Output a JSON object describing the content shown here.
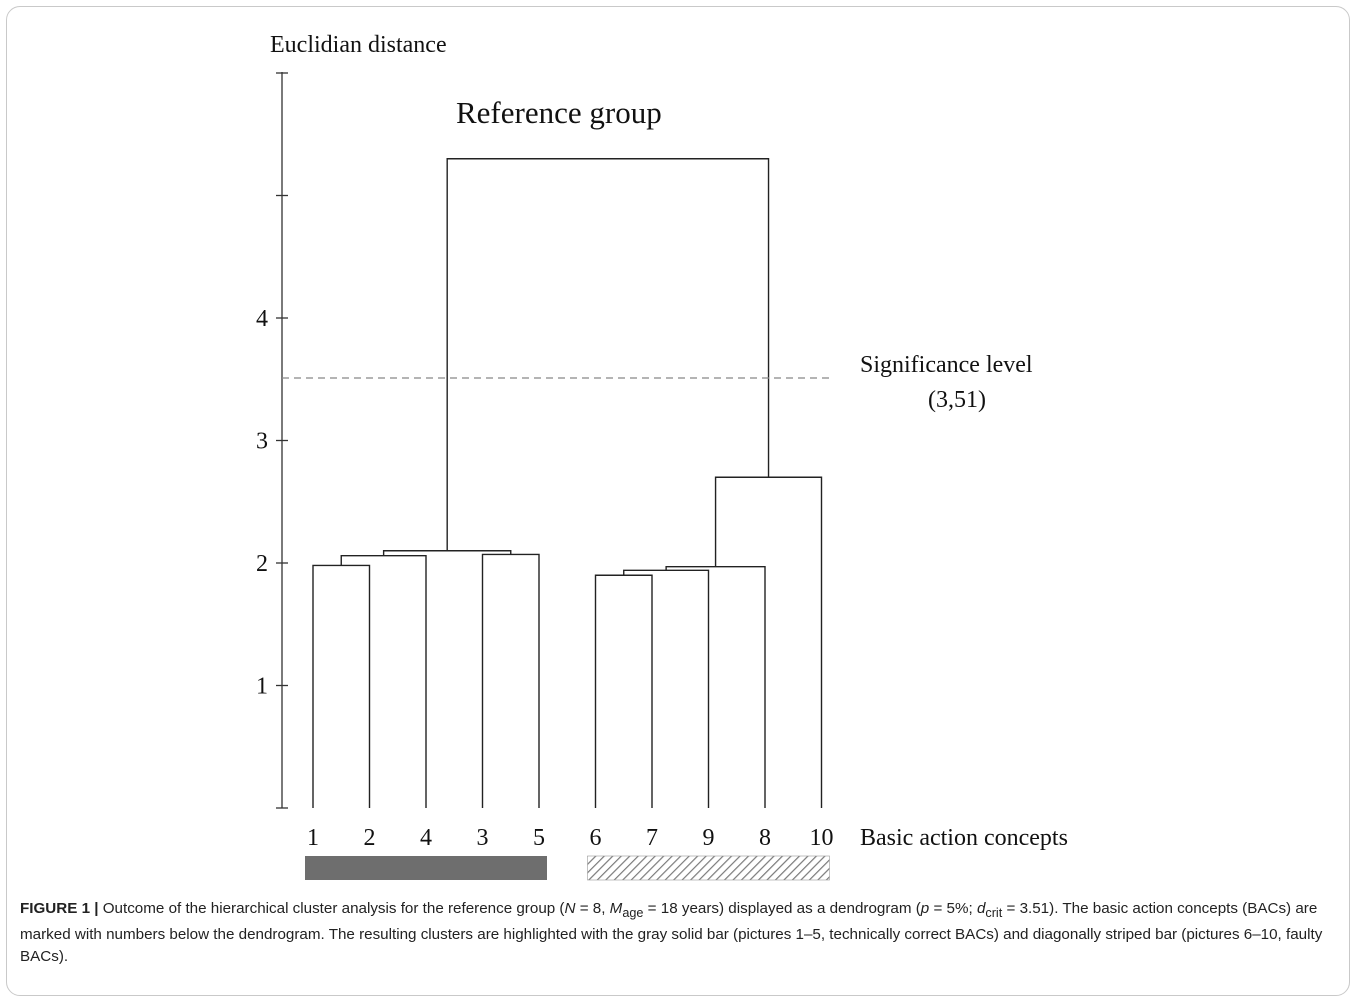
{
  "figure": {
    "y_axis_label": "Euclidian distance",
    "title": "Reference group",
    "significance_label": "Significance level",
    "significance_value_label": "(3,51)",
    "x_axis_label": "Basic action concepts"
  },
  "chart_data": {
    "type": "dendrogram",
    "title": "Reference group",
    "ylabel": "Euclidian distance",
    "xlabel": "Basic action concepts",
    "ylim": [
      0,
      6
    ],
    "y_ticks": [
      0,
      1,
      2,
      3,
      4,
      5,
      6
    ],
    "y_tick_labels": [
      "",
      "1",
      "2",
      "3",
      "4",
      "",
      ""
    ],
    "leaf_order": [
      "1",
      "2",
      "4",
      "3",
      "5",
      "6",
      "7",
      "9",
      "8",
      "10"
    ],
    "merges": [
      {
        "left": "1",
        "right": "2",
        "height": 1.98
      },
      {
        "left": "1-2",
        "right": "4",
        "height": 2.06
      },
      {
        "left": "3",
        "right": "5",
        "height": 2.07
      },
      {
        "left": "1-2-4",
        "right": "3-5",
        "height": 2.1
      },
      {
        "left": "6",
        "right": "7",
        "height": 1.9
      },
      {
        "left": "6-7",
        "right": "9",
        "height": 1.94
      },
      {
        "left": "6-7-9",
        "right": "8",
        "height": 1.97
      },
      {
        "left": "6-7-9-8",
        "right": "10",
        "height": 2.7
      },
      {
        "left": "1-5",
        "right": "6-10",
        "height": 5.3
      }
    ],
    "significance_level": 3.51,
    "clusters": [
      {
        "leaves": [
          "1",
          "2",
          "4",
          "3",
          "5"
        ],
        "style": "gray solid",
        "color": "#6e6e6e"
      },
      {
        "leaves": [
          "6",
          "7",
          "9",
          "8",
          "10"
        ],
        "style": "diagonally striped",
        "color": "#7a7a7a"
      }
    ]
  },
  "caption": {
    "label": "FIGURE 1 |",
    "text_1": " Outcome of the hierarchical cluster analysis for the reference group (",
    "n_var": "N",
    "text_2": " = 8, ",
    "m_var": "M",
    "m_sub": "age",
    "text_3": " = 18 years) displayed as a dendrogram (",
    "p_var": "p",
    "text_4": " = 5%; ",
    "d_var": "d",
    "d_sub": "crit",
    "text_5": " = 3.51). The basic action concepts (BACs) are marked with numbers below the dendrogram. The resulting clusters are highlighted with the gray solid bar (pictures 1–5, technically correct BACs) and diagonally striped bar (pictures 6–10, faulty BACs)."
  }
}
